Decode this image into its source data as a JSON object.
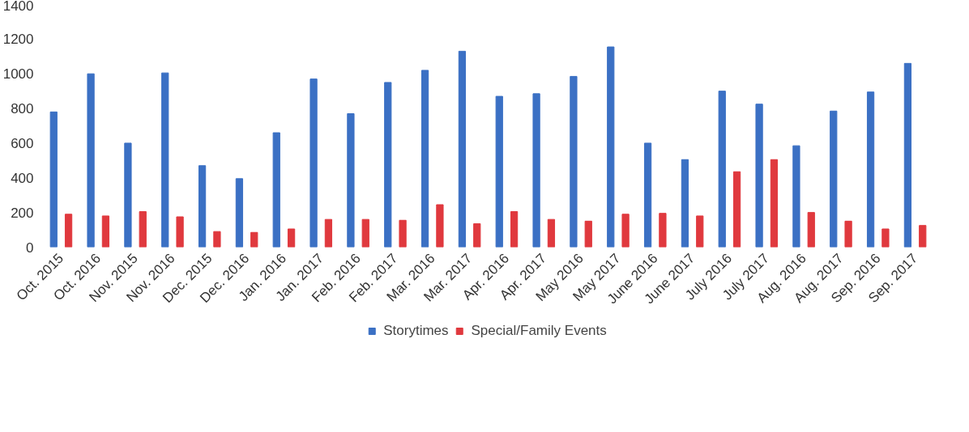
{
  "chart_data": {
    "type": "bar",
    "categories": [
      "Oct. 2015",
      "Oct. 2016",
      "Nov. 2015",
      "Nov. 2016",
      "Dec. 2015",
      "Dec. 2016",
      "Jan. 2016",
      "Jan. 2017",
      "Feb. 2016",
      "Feb. 2017",
      "Mar. 2016",
      "Mar. 2017",
      "Apr. 2016",
      "Apr. 2017",
      "May 2016",
      "May 2017",
      "June 2016",
      "June 2017",
      "July 2016",
      "July 2017",
      "Aug. 2016",
      "Aug. 2017",
      "Sep. 2016",
      "Sep. 2017"
    ],
    "series": [
      {
        "name": "Storytimes",
        "color": "#3b70c4",
        "values": [
          780,
          1000,
          600,
          1005,
          470,
          395,
          660,
          970,
          770,
          950,
          1020,
          1130,
          870,
          885,
          985,
          1155,
          600,
          505,
          900,
          825,
          585,
          785,
          895,
          1060
        ]
      },
      {
        "name": "Special/Family Events",
        "color": "#e0393e",
        "values": [
          190,
          180,
          205,
          175,
          90,
          85,
          105,
          160,
          160,
          155,
          245,
          135,
          205,
          160,
          150,
          190,
          195,
          180,
          435,
          505,
          200,
          150,
          105,
          125
        ]
      }
    ],
    "ylim": [
      0,
      1400
    ],
    "yticks": [
      0,
      200,
      400,
      600,
      800,
      1000,
      1200,
      1400
    ],
    "grid": false,
    "legend": "bottom"
  }
}
